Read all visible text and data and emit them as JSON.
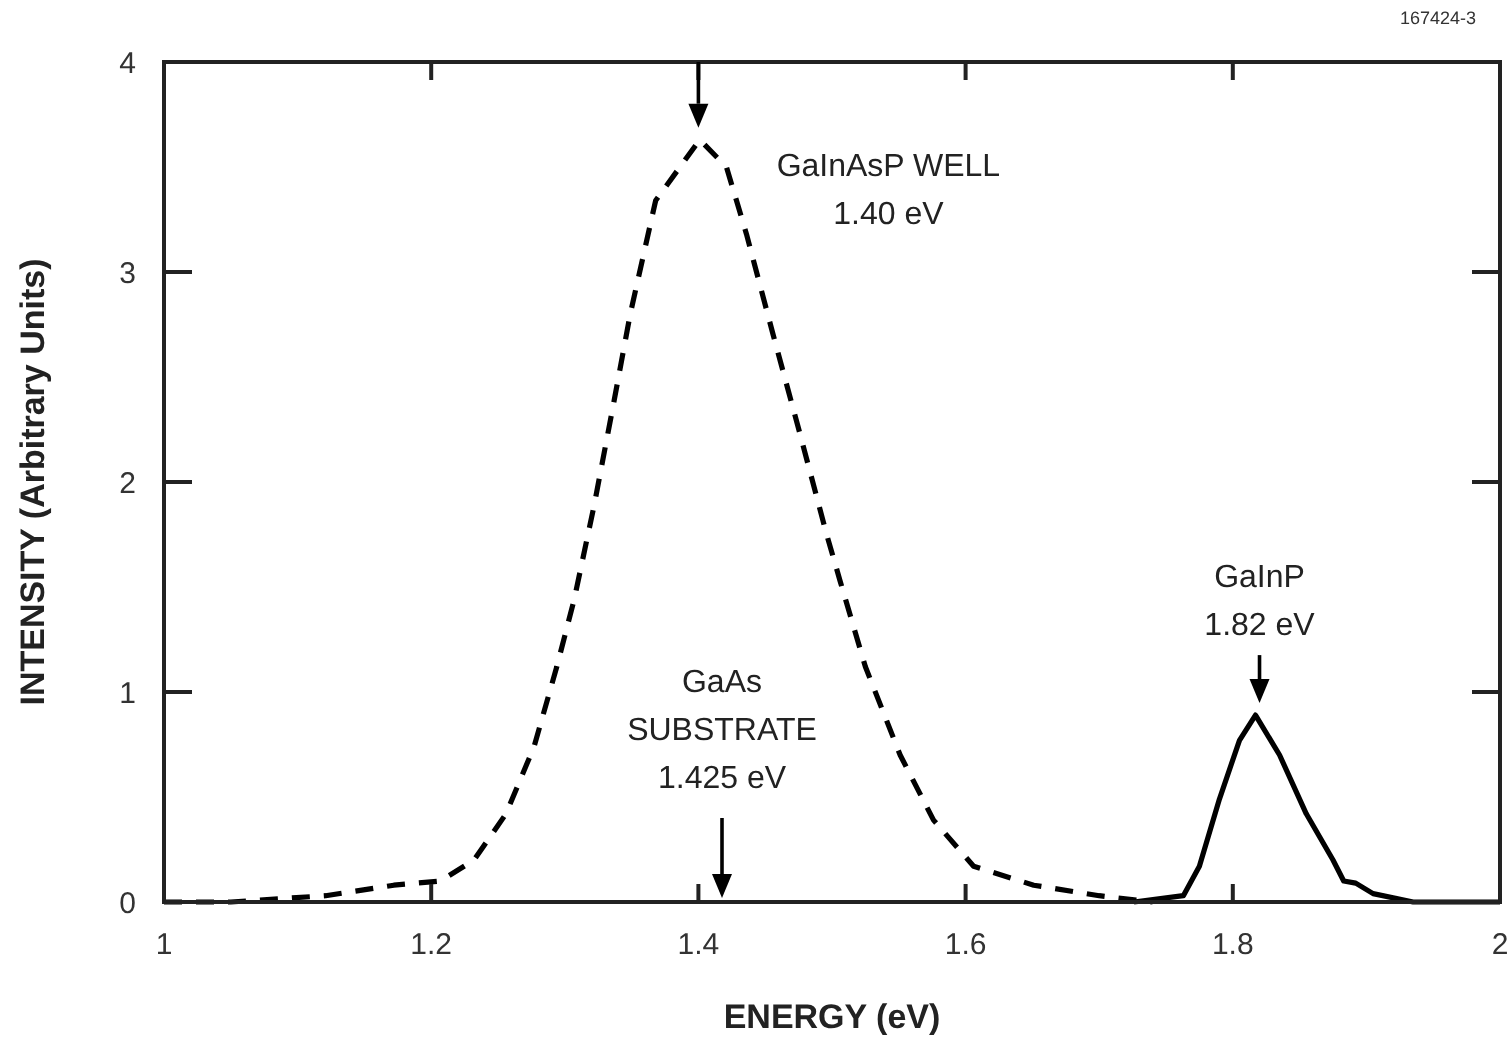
{
  "chart_data": {
    "type": "line",
    "xlabel": "ENERGY (eV)",
    "ylabel": "INTENSITY (Arbitrary Units)",
    "xlim": [
      1,
      2
    ],
    "xticks": [
      1,
      1.2,
      1.4,
      1.6,
      1.8,
      2
    ],
    "ylim": [
      0,
      4
    ],
    "yticks": [
      0,
      1,
      2,
      3,
      4
    ],
    "series": [
      {
        "color": "#000000",
        "line_style": "dashed",
        "x": [
          1.0,
          1.05,
          1.121,
          1.172,
          1.207,
          1.232,
          1.256,
          1.277,
          1.294,
          1.307,
          1.322,
          1.337,
          1.349,
          1.368,
          1.401,
          1.421,
          1.436,
          1.456,
          1.476,
          1.496,
          1.506,
          1.525,
          1.551,
          1.576,
          1.606,
          1.651,
          1.7,
          1.74
        ],
        "values": [
          0,
          0,
          0.03,
          0.08,
          0.1,
          0.2,
          0.42,
          0.74,
          1.12,
          1.44,
          1.89,
          2.39,
          2.8,
          3.34,
          3.63,
          3.5,
          3.18,
          2.7,
          2.23,
          1.75,
          1.53,
          1.12,
          0.7,
          0.39,
          0.17,
          0.08,
          0.03,
          0
        ]
      },
      {
        "color": "#000000",
        "line_style": "solid",
        "x": [
          1.726,
          1.763,
          1.775,
          1.79,
          1.805,
          1.817,
          1.835,
          1.855,
          1.875,
          1.883,
          1.892,
          1.905,
          1.935,
          2.0
        ],
        "values": [
          0,
          0.03,
          0.17,
          0.49,
          0.77,
          0.89,
          0.7,
          0.42,
          0.2,
          0.1,
          0.09,
          0.04,
          0,
          0
        ]
      }
    ],
    "annotations": [
      {
        "text": "GaInAsP WELL\n1.40 eV",
        "x": 1.4,
        "y": 3.63
      },
      "GaAs\nSUBSTRATE\n1.425 eV",
      {
        "text": "GaInP\n1.82 eV",
        "x": 1.82,
        "y": 0.89
      },
      "167424-3"
    ]
  }
}
